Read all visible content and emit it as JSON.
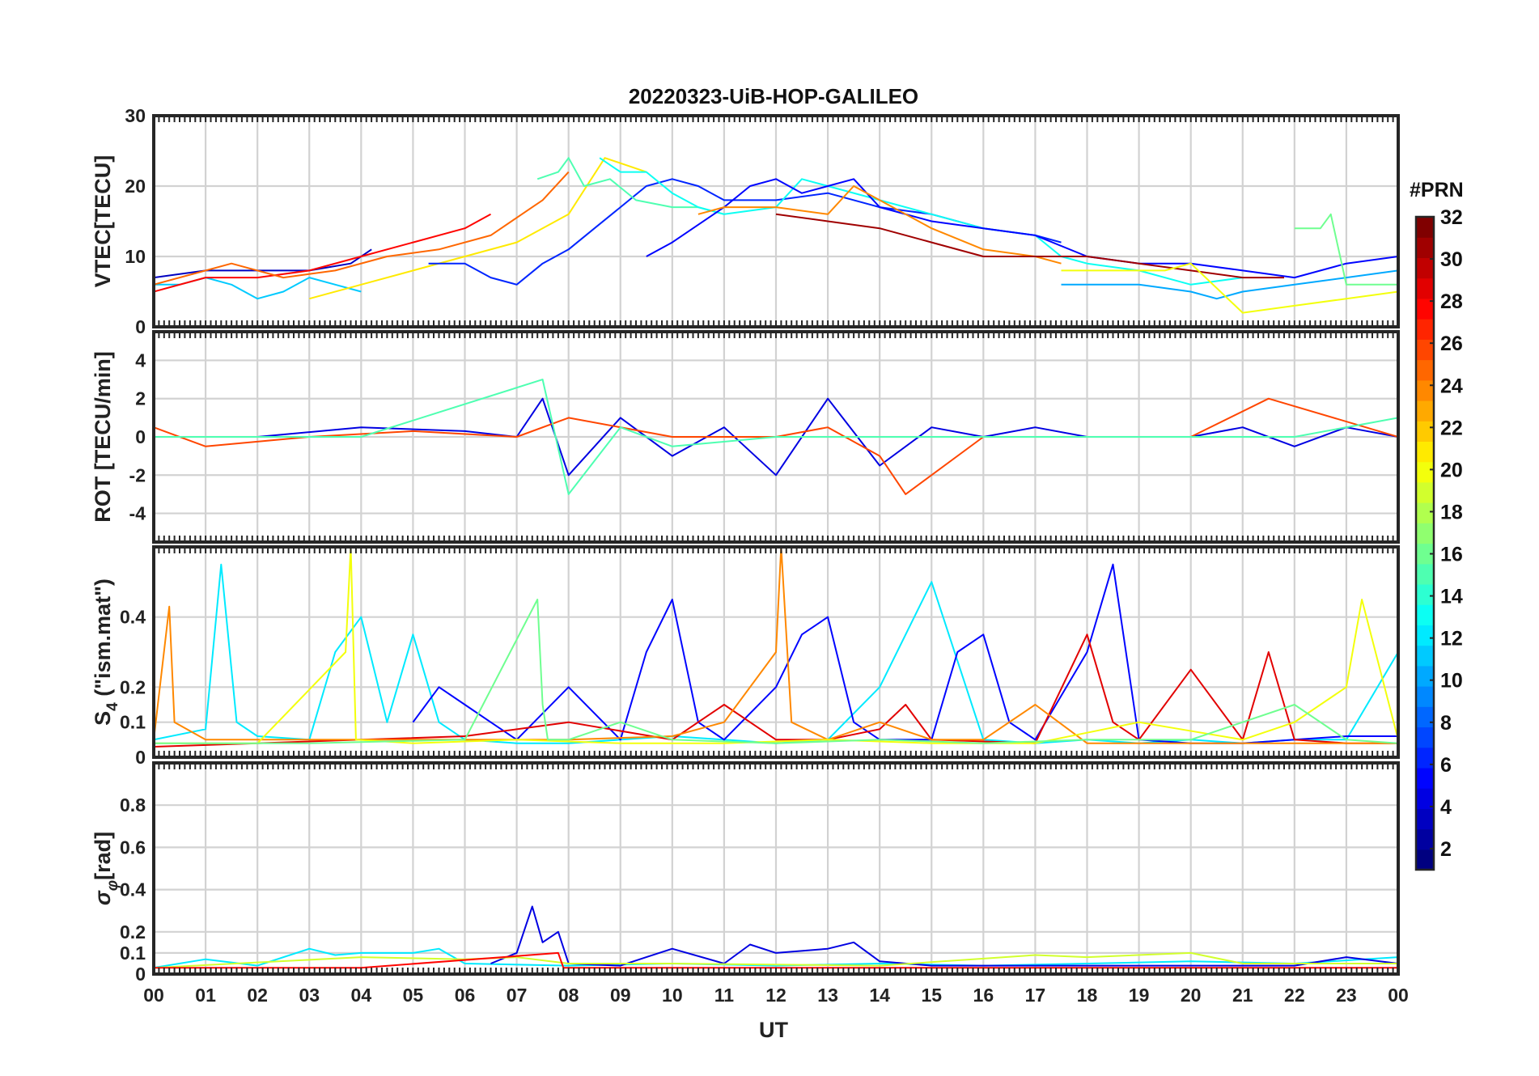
{
  "title": "20220323-UiB-HOP-GALILEO",
  "colorbar": {
    "title": "#PRN",
    "min": 1,
    "max": 32,
    "ticks": [
      "2",
      "4",
      "6",
      "8",
      "10",
      "12",
      "14",
      "16",
      "18",
      "20",
      "22",
      "24",
      "26",
      "28",
      "30",
      "32"
    ]
  },
  "chart_data": [
    {
      "type": "line",
      "name": "vtec",
      "ylabel": "VTEC[TECU]",
      "ylim": [
        0,
        30
      ],
      "yticks": [
        "0",
        "10",
        "20",
        "30"
      ],
      "xlim": [
        0,
        24
      ],
      "series_note": "one trace per visible satellite, coloured by PRN",
      "series": [
        {
          "prn": 11,
          "x": [
            0.0,
            0.5,
            1.0,
            1.5,
            2.0,
            2.5,
            3.0,
            3.5,
            4.0
          ],
          "y": [
            6,
            6,
            7,
            6,
            4,
            5,
            7,
            6,
            5
          ]
        },
        {
          "prn": 3,
          "x": [
            0.0,
            1.0,
            2.0,
            3.0,
            3.8,
            4.2
          ],
          "y": [
            7,
            8,
            8,
            8,
            9,
            11
          ]
        },
        {
          "prn": 28,
          "x": [
            0.0,
            1.0,
            2.0,
            3.0,
            4.0,
            5.0,
            6.0,
            6.5
          ],
          "y": [
            5,
            7,
            7,
            8,
            10,
            12,
            14,
            16
          ]
        },
        {
          "prn": 25,
          "x": [
            0.0,
            1.0,
            1.5,
            2.5,
            3.5,
            4.5,
            5.5,
            6.5,
            7.5,
            8.0
          ],
          "y": [
            6,
            8,
            9,
            7,
            8,
            10,
            11,
            13,
            18,
            22
          ]
        },
        {
          "prn": 21,
          "x": [
            3.0,
            4.0,
            5.0,
            6.0,
            7.0,
            8.0,
            8.7,
            9.5
          ],
          "y": [
            4,
            6,
            8,
            10,
            12,
            16,
            24,
            22
          ]
        },
        {
          "prn": 6,
          "x": [
            5.3,
            6.0,
            6.5,
            7.0,
            7.5,
            8.0,
            8.5,
            9.0,
            9.5,
            10.0,
            10.5,
            11.0,
            12.0,
            13.0,
            14.0,
            15.0,
            16.0,
            17.0,
            17.5
          ],
          "y": [
            9,
            9,
            7,
            6,
            9,
            11,
            14,
            17,
            20,
            21,
            20,
            18,
            18,
            19,
            17,
            16,
            14,
            13,
            12
          ]
        },
        {
          "prn": 15,
          "x": [
            7.4,
            7.8,
            8.0,
            8.3,
            8.8,
            9.3,
            10.0,
            10.5,
            11.0
          ],
          "y": [
            21,
            22,
            24,
            20,
            21,
            18,
            17,
            17,
            16
          ]
        },
        {
          "prn": 13,
          "x": [
            8.6,
            9.0,
            9.5,
            10.0,
            10.5,
            11.0,
            12.0,
            12.5,
            13.0,
            14.0,
            15.0,
            16.0,
            17.0,
            17.5,
            18.0,
            19.0,
            20.0,
            21.0
          ],
          "y": [
            24,
            22,
            22,
            19,
            17,
            16,
            17,
            21,
            20,
            18,
            16,
            14,
            13,
            10,
            9,
            8,
            6,
            7
          ]
        },
        {
          "prn": 5,
          "x": [
            9.5,
            10.0,
            11.0,
            11.5,
            12.0,
            12.5,
            13.0,
            13.5,
            14.0,
            15.0,
            16.0,
            17.0,
            18.0,
            19.0,
            20.0,
            21.0,
            22.0,
            23.0,
            24.0
          ],
          "y": [
            10,
            12,
            17,
            20,
            21,
            19,
            20,
            21,
            17,
            15,
            14,
            13,
            10,
            9,
            9,
            8,
            7,
            9,
            10
          ]
        },
        {
          "prn": 24,
          "x": [
            10.5,
            11.0,
            12.0,
            13.0,
            13.5,
            14.0,
            15.0,
            16.0,
            17.0,
            17.5
          ],
          "y": [
            16,
            17,
            17,
            16,
            20,
            18,
            14,
            11,
            10,
            9
          ]
        },
        {
          "prn": 31,
          "x": [
            12.0,
            13.0,
            14.0,
            15.0,
            16.0,
            17.0,
            17.5,
            18.0,
            19.0,
            20.0,
            21.0,
            21.8
          ],
          "y": [
            16,
            15,
            14,
            12,
            10,
            10,
            10,
            10,
            9,
            8,
            7,
            7
          ]
        },
        {
          "prn": 10,
          "x": [
            17.5,
            18.0,
            19.0,
            20.0,
            20.5,
            21.0,
            22.0,
            23.0,
            24.0
          ],
          "y": [
            6,
            6,
            6,
            5,
            4,
            5,
            6,
            7,
            8
          ]
        },
        {
          "prn": 20,
          "x": [
            17.5,
            18.5,
            19.5,
            20.0,
            21.0,
            22.0,
            23.0,
            24.0
          ],
          "y": [
            8,
            8,
            8,
            9,
            2,
            3,
            4,
            5
          ]
        },
        {
          "prn": 16,
          "x": [
            22.0,
            22.5,
            22.7,
            23.0,
            24.0
          ],
          "y": [
            14,
            14,
            16,
            6,
            6
          ]
        }
      ]
    },
    {
      "type": "line",
      "name": "rot",
      "ylabel": "ROT [TECU/min]",
      "ylim": [
        -5.5,
        5.5
      ],
      "yticks": [
        "-4",
        "-2",
        "0",
        "2",
        "4"
      ],
      "xlim": [
        0,
        24
      ],
      "series": [
        {
          "prn": 4,
          "x": [
            0,
            2,
            4,
            6,
            7,
            7.5,
            8,
            9,
            10,
            11,
            12,
            13,
            14,
            15,
            16,
            17,
            18,
            19,
            20,
            21,
            22,
            23,
            24
          ],
          "y": [
            0,
            0,
            0.5,
            0.3,
            0,
            2,
            -2,
            1,
            -1,
            0.5,
            -2,
            2,
            -1.5,
            0.5,
            0,
            0.5,
            0,
            0,
            0,
            0.5,
            -0.5,
            0.5,
            0
          ]
        },
        {
          "prn": 26,
          "x": [
            0,
            1,
            3,
            5,
            7,
            8,
            10,
            12,
            13,
            14,
            14.5,
            16,
            18,
            20,
            21.5,
            24
          ],
          "y": [
            0.5,
            -0.5,
            0,
            0.3,
            0,
            1,
            0,
            0,
            0.5,
            -1,
            -3,
            0,
            0,
            0,
            2,
            0
          ]
        },
        {
          "prn": 15,
          "x": [
            0,
            4,
            7.5,
            8,
            9,
            10,
            12,
            14,
            16,
            18,
            20,
            22,
            24
          ],
          "y": [
            0,
            0,
            3,
            -3,
            0.5,
            -0.5,
            0,
            0,
            0,
            0,
            0,
            0,
            1
          ]
        }
      ]
    },
    {
      "type": "line",
      "name": "s4",
      "ylabel": "S4 (\"ism.mat\")",
      "ylabel_main": "S",
      "ylabel_sub": "4",
      "ylabel_rest": " (\"ism.mat\")",
      "ylim": [
        0,
        0.6
      ],
      "yticks": [
        "0",
        "0.1",
        "0.2",
        "0.4"
      ],
      "ytick_values": [
        0,
        0.1,
        0.2,
        0.4
      ],
      "xlim": [
        0,
        24
      ],
      "series": [
        {
          "prn": 12,
          "x": [
            0,
            1,
            1.3,
            1.6,
            2,
            3,
            3.5,
            4,
            4.5,
            5,
            5.5,
            6,
            7,
            8,
            9,
            10,
            11,
            12,
            13,
            14,
            15,
            16,
            17,
            18,
            19,
            20,
            21,
            22,
            23,
            24
          ],
          "y": [
            0.05,
            0.08,
            0.55,
            0.1,
            0.06,
            0.05,
            0.3,
            0.4,
            0.1,
            0.35,
            0.1,
            0.05,
            0.04,
            0.04,
            0.05,
            0.06,
            0.05,
            0.04,
            0.05,
            0.2,
            0.5,
            0.05,
            0.04,
            0.05,
            0.04,
            0.05,
            0.04,
            0.05,
            0.05,
            0.3
          ]
        },
        {
          "prn": 5,
          "x": [
            5,
            5.5,
            6,
            6.5,
            7,
            8,
            9,
            9.5,
            10,
            10.5,
            11,
            12,
            12.5,
            13,
            13.5,
            14,
            15,
            15.5,
            16,
            16.5,
            17,
            18,
            18.5,
            19,
            20,
            21,
            22,
            23,
            24
          ],
          "y": [
            0.1,
            0.2,
            0.15,
            0.1,
            0.05,
            0.2,
            0.05,
            0.3,
            0.45,
            0.1,
            0.05,
            0.2,
            0.35,
            0.4,
            0.1,
            0.05,
            0.05,
            0.3,
            0.35,
            0.1,
            0.05,
            0.3,
            0.55,
            0.05,
            0.04,
            0.04,
            0.05,
            0.06,
            0.06
          ]
        },
        {
          "prn": 29,
          "x": [
            0,
            2,
            4,
            6,
            8,
            10,
            11,
            12,
            13,
            14,
            14.5,
            15,
            17,
            18,
            18.5,
            19,
            20,
            21,
            21.5,
            22,
            23,
            24
          ],
          "y": [
            0.03,
            0.04,
            0.05,
            0.06,
            0.1,
            0.05,
            0.15,
            0.05,
            0.05,
            0.08,
            0.15,
            0.05,
            0.04,
            0.35,
            0.1,
            0.05,
            0.25,
            0.05,
            0.3,
            0.05,
            0.04,
            0.04
          ]
        },
        {
          "prn": 24,
          "x": [
            0,
            0.3,
            0.4,
            1,
            3,
            6,
            8,
            10,
            11,
            12,
            12.1,
            12.3,
            13,
            14,
            15,
            16,
            17,
            18,
            20,
            22,
            24
          ],
          "y": [
            0.05,
            0.43,
            0.1,
            0.05,
            0.05,
            0.05,
            0.05,
            0.06,
            0.1,
            0.3,
            0.6,
            0.1,
            0.05,
            0.1,
            0.05,
            0.05,
            0.15,
            0.04,
            0.04,
            0.04,
            0.04
          ]
        },
        {
          "prn": 20,
          "x": [
            0,
            2,
            3.7,
            3.8,
            3.9,
            5,
            7,
            9,
            11,
            13,
            15,
            17,
            19,
            21,
            22,
            23,
            23.3,
            24
          ],
          "y": [
            0.04,
            0.04,
            0.3,
            0.6,
            0.05,
            0.04,
            0.05,
            0.04,
            0.04,
            0.05,
            0.04,
            0.04,
            0.1,
            0.05,
            0.1,
            0.2,
            0.45,
            0.05
          ]
        },
        {
          "prn": 16,
          "x": [
            0,
            3,
            6,
            7.4,
            7.5,
            7.6,
            8,
            9,
            10,
            12,
            14,
            16,
            18,
            20,
            22,
            23,
            24
          ],
          "y": [
            0.04,
            0.04,
            0.05,
            0.45,
            0.15,
            0.05,
            0.05,
            0.1,
            0.05,
            0.04,
            0.05,
            0.04,
            0.05,
            0.05,
            0.15,
            0.05,
            0.04
          ]
        }
      ]
    },
    {
      "type": "line",
      "name": "sigma_phi",
      "ylabel": "σφ[rad]",
      "ylabel_main": "σ",
      "ylabel_sub": "φ",
      "ylabel_rest": "[rad]",
      "ylim": [
        0,
        1.0
      ],
      "yticks": [
        "0",
        "0.1",
        "0.2",
        "0.4",
        "0.6",
        "0.8"
      ],
      "ytick_values": [
        0,
        0.1,
        0.2,
        0.4,
        0.6,
        0.8
      ],
      "xlim": [
        0,
        24
      ],
      "series": [
        {
          "prn": 12,
          "x": [
            0,
            1,
            2,
            3,
            3.5,
            4,
            5,
            5.5,
            6,
            8,
            10,
            12,
            14,
            16,
            18,
            20,
            22,
            24
          ],
          "y": [
            0.03,
            0.07,
            0.04,
            0.12,
            0.09,
            0.1,
            0.1,
            0.12,
            0.05,
            0.04,
            0.05,
            0.04,
            0.05,
            0.04,
            0.05,
            0.06,
            0.05,
            0.08
          ]
        },
        {
          "prn": 4,
          "x": [
            6.5,
            7,
            7.3,
            7.5,
            7.8,
            8,
            9,
            9.5,
            10,
            11,
            11.5,
            12,
            13,
            13.5,
            14,
            15,
            16,
            18,
            20,
            22,
            23,
            24
          ],
          "y": [
            0.05,
            0.1,
            0.32,
            0.15,
            0.2,
            0.05,
            0.04,
            0.08,
            0.12,
            0.05,
            0.14,
            0.1,
            0.12,
            0.15,
            0.06,
            0.04,
            0.04,
            0.04,
            0.04,
            0.04,
            0.08,
            0.05
          ]
        },
        {
          "prn": 19,
          "x": [
            0,
            4,
            6,
            7,
            8,
            10,
            14,
            17,
            18,
            20,
            21,
            24
          ],
          "y": [
            0.03,
            0.08,
            0.07,
            0.08,
            0.05,
            0.05,
            0.04,
            0.09,
            0.08,
            0.1,
            0.05,
            0.05
          ]
        },
        {
          "prn": 28,
          "x": [
            0,
            4,
            7.8,
            7.9,
            8,
            10,
            14,
            18,
            22,
            24
          ],
          "y": [
            0.03,
            0.03,
            0.1,
            0.03,
            0.03,
            0.03,
            0.03,
            0.03,
            0.03,
            0.03
          ]
        }
      ]
    }
  ],
  "xaxis": {
    "label": "UT",
    "ticks": [
      "00",
      "01",
      "02",
      "03",
      "04",
      "05",
      "06",
      "07",
      "08",
      "09",
      "10",
      "11",
      "12",
      "13",
      "14",
      "15",
      "16",
      "17",
      "18",
      "19",
      "20",
      "21",
      "22",
      "23",
      "00"
    ]
  }
}
